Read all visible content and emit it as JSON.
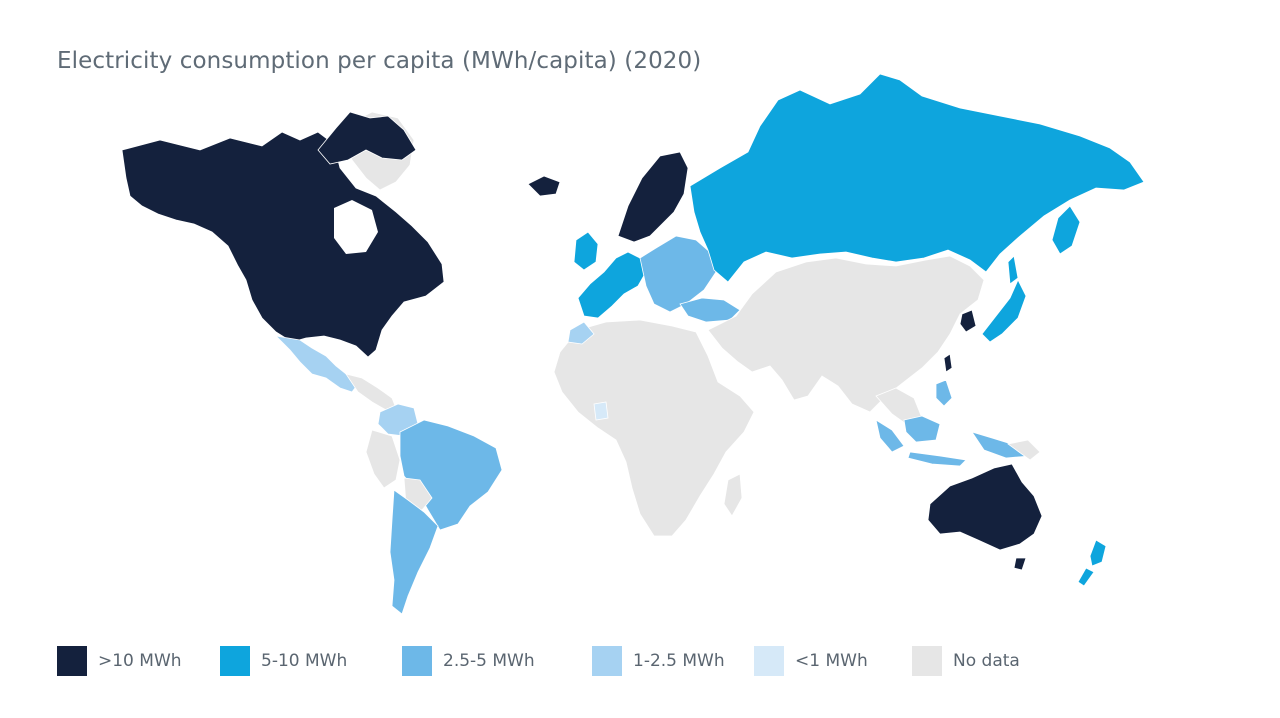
{
  "title": "Electricity consumption per capita (MWh/capita) (2020)",
  "colors": {
    "gt10": "#14213d",
    "c5_10": "#0ea5dd",
    "c2_5_5": "#6db8e8",
    "c1_2_5": "#a6d2f2",
    "lt1": "#d6e9f8",
    "nodata": "#e6e6e6",
    "background": "#ffffff"
  },
  "legend": [
    {
      "label": ">10 MWh",
      "color": "#14213d"
    },
    {
      "label": "5-10 MWh",
      "color": "#0ea5dd"
    },
    {
      "label": "2.5-5 MWh",
      "color": "#6db8e8"
    },
    {
      "label": "1-2.5 MWh",
      "color": "#a6d2f2"
    },
    {
      "label": "<1 MWh",
      "color": "#d6e9f8"
    },
    {
      "label": "No data",
      "color": "#e6e6e6"
    }
  ],
  "regions": [
    {
      "name": "North America (USA, Canada)",
      "category": ">10 MWh"
    },
    {
      "name": "Greenland",
      "category": "No data"
    },
    {
      "name": "Iceland",
      "category": ">10 MWh"
    },
    {
      "name": "Nordics",
      "category": ">10 MWh"
    },
    {
      "name": "Russia",
      "category": "5-10 MWh"
    },
    {
      "name": "Western Europe",
      "category": "5-10 MWh"
    },
    {
      "name": "Eastern Europe",
      "category": "2.5-5 MWh"
    },
    {
      "name": "Mexico",
      "category": "1-2.5 MWh"
    },
    {
      "name": "South America",
      "category": "2.5-5 MWh"
    },
    {
      "name": "Africa",
      "category": "No data"
    },
    {
      "name": "Asia",
      "category": "No data"
    },
    {
      "name": "South Korea",
      "category": ">10 MWh"
    },
    {
      "name": "Japan",
      "category": "5-10 MWh"
    },
    {
      "name": "Indonesia",
      "category": "2.5-5 MWh"
    },
    {
      "name": "Australia",
      "category": ">10 MWh"
    },
    {
      "name": "New Zealand",
      "category": "5-10 MWh"
    }
  ]
}
